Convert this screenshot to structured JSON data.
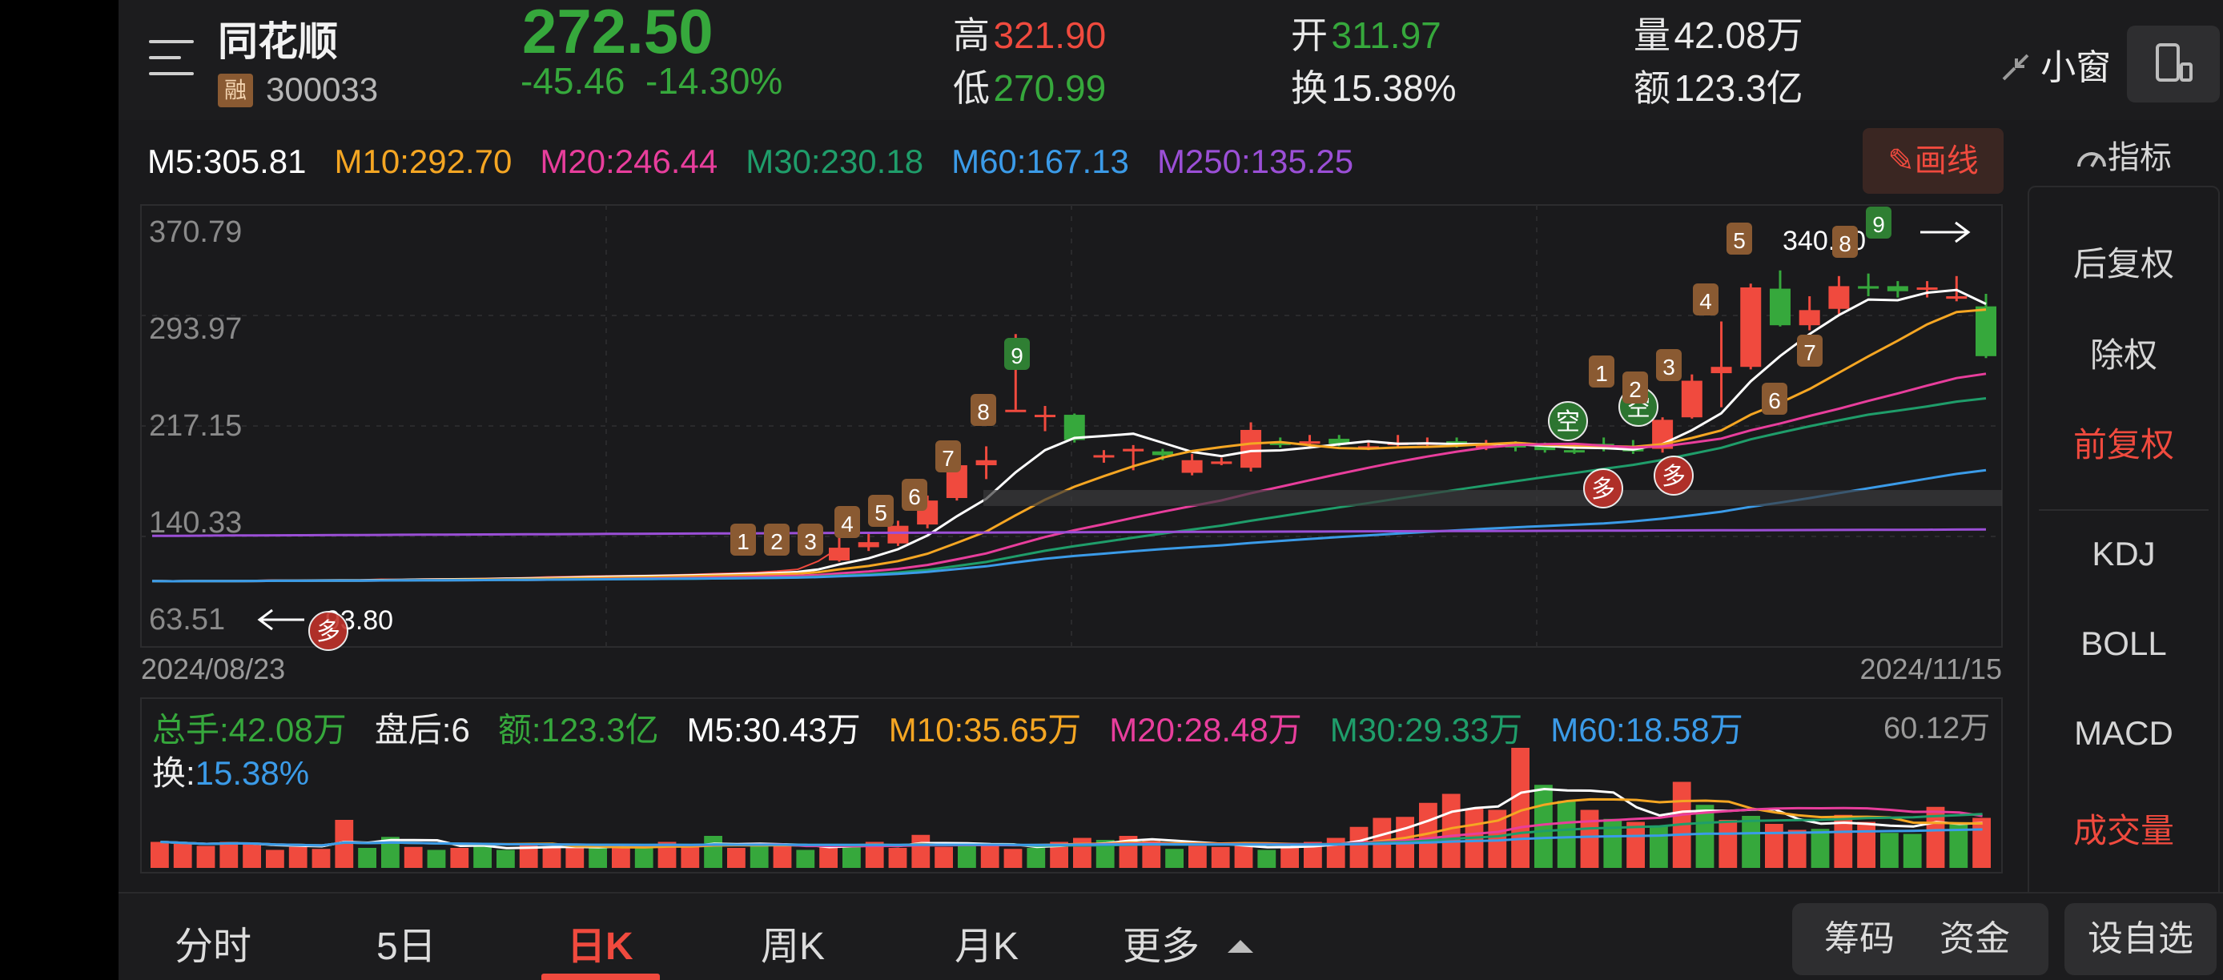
{
  "stock": {
    "name": "同花顺",
    "badge": "融",
    "code": "300033",
    "price": "272.50",
    "change": "-45.46",
    "change_pct": "-14.30%"
  },
  "quote": {
    "high_label": "高",
    "high": "321.90",
    "low_label": "低",
    "low": "270.99",
    "open_label": "开",
    "open": "311.97",
    "turnover_label": "换",
    "turnover": "15.38%",
    "volume_label": "量",
    "volume": "42.08万",
    "amount_label": "额",
    "amount": "123.3亿"
  },
  "header_actions": {
    "mini_window": "小窗"
  },
  "ma": {
    "m5": "M5:305.81",
    "m10": "M10:292.70",
    "m20": "M20:246.44",
    "m30": "M30:230.18",
    "m60": "M60:167.13",
    "m250": "M250:135.25"
  },
  "draw_button": "画线",
  "indicator_label": "指标",
  "sidebar": {
    "items": [
      "后复权",
      "除权",
      "前复权",
      "KDJ",
      "BOLL",
      "MACD",
      "成交量"
    ],
    "active": [
      "前复权",
      "成交量"
    ]
  },
  "colors": {
    "up": "#f04a3e",
    "down": "#36a83c",
    "m5": "#ffffff",
    "m10": "#f5a623",
    "m20": "#e83e9c",
    "m30": "#1f9d6a",
    "m60": "#3b9be8",
    "m250": "#9b4fd6"
  },
  "chart_data": {
    "type": "candlestick",
    "y_ticks": [
      "370.79",
      "293.97",
      "217.15",
      "140.33",
      "63.51"
    ],
    "ylim": [
      63.51,
      370.79
    ],
    "date_start": "2024/08/23",
    "date_end": "2024/11/15",
    "annotations": {
      "high_marker": "340.50",
      "low_marker": "93.80",
      "buy_tag": "多",
      "sell_tag": "空"
    },
    "td_counts": [
      "1",
      "2",
      "3",
      "4",
      "5",
      "6",
      "7",
      "8",
      "9",
      "1",
      "2",
      "3",
      "4",
      "5",
      "6",
      "7",
      "8",
      "9"
    ],
    "candles": [
      [
        93.9,
        94.2,
        93.0,
        95.0
      ],
      [
        93.6,
        93.8,
        92.8,
        94.6
      ],
      [
        94.0,
        94.3,
        93.0,
        95.2
      ],
      [
        94.5,
        94.1,
        93.5,
        95.5
      ],
      [
        94.0,
        94.6,
        93.4,
        95.6
      ],
      [
        94.3,
        94.6,
        93.5,
        95.4
      ],
      [
        94.5,
        94.9,
        94.0,
        95.8
      ],
      [
        94.6,
        94.6,
        93.8,
        95.6
      ],
      [
        94.6,
        94.7,
        94.0,
        95.7
      ],
      [
        94.7,
        94.9,
        94.1,
        95.9
      ],
      [
        94.8,
        95.0,
        94.0,
        96.0
      ],
      [
        94.8,
        95.6,
        94.2,
        96.4
      ],
      [
        95.5,
        95.3,
        94.6,
        96.2
      ],
      [
        95.4,
        95.7,
        94.8,
        96.8
      ],
      [
        95.7,
        95.9,
        95.0,
        96.9
      ],
      [
        95.8,
        95.8,
        95.0,
        96.8
      ],
      [
        95.9,
        96.2,
        95.2,
        97.2
      ],
      [
        96.0,
        96.5,
        95.4,
        97.4
      ],
      [
        96.5,
        96.8,
        95.8,
        97.8
      ],
      [
        96.8,
        97.4,
        96.2,
        98.2
      ],
      [
        97.4,
        97.6,
        96.8,
        98.6
      ],
      [
        97.6,
        98.0,
        97.0,
        99.0
      ],
      [
        98.0,
        98.2,
        97.4,
        99.2
      ],
      [
        98.2,
        98.4,
        97.6,
        99.4
      ],
      [
        98.4,
        98.6,
        97.8,
        99.6
      ],
      [
        98.6,
        99.0,
        98.0,
        100.0
      ],
      [
        99.0,
        99.4,
        98.4,
        100.4
      ],
      [
        99.4,
        100.0,
        98.8,
        101.0
      ],
      [
        100.0,
        100.4,
        99.2,
        101.6
      ],
      [
        100.5,
        101.0,
        99.8,
        102.0
      ],
      [
        101.0,
        102.0,
        100.2,
        103.0
      ],
      [
        102.0,
        103.4,
        101.2,
        104.4
      ],
      [
        103.4,
        110.0,
        102.8,
        112.0
      ],
      [
        110.5,
        120.6,
        109.5,
        130.0
      ],
      [
        121.0,
        125.0,
        118.0,
        132.0
      ],
      [
        124.0,
        138.0,
        122.0,
        142.0
      ],
      [
        139.0,
        158.0,
        136.0,
        162.0
      ],
      [
        160.0,
        186.0,
        158.0,
        193.0
      ],
      [
        186.0,
        190.0,
        175.0,
        201.0
      ],
      [
        230.0,
        230.0,
        230.0,
        290.0
      ],
      [
        226.0,
        226.0,
        213.0,
        233.0
      ],
      [
        226.0,
        206.0,
        204.0,
        227.0
      ],
      [
        193.0,
        194.0,
        188.0,
        198.0
      ],
      [
        197.0,
        199.0,
        182.0,
        202.0
      ],
      [
        197.0,
        194.0,
        190.0,
        199.0
      ],
      [
        180.0,
        190.0,
        178.0,
        195.0
      ],
      [
        187.0,
        189.0,
        186.0,
        192.0
      ],
      [
        184.0,
        214.0,
        181.0,
        220.0
      ],
      [
        204.0,
        202.0,
        200.0,
        208.0
      ],
      [
        205.0,
        205.0,
        201.0,
        210.0
      ],
      [
        207.0,
        203.0,
        201.0,
        210.0
      ],
      [
        200.0,
        201.0,
        198.0,
        204.0
      ],
      [
        202.0,
        204.0,
        200.0,
        210.0
      ],
      [
        203.0,
        204.0,
        200.0,
        208.0
      ],
      [
        205.0,
        202.0,
        200.0,
        208.0
      ],
      [
        200.0,
        203.0,
        198.0,
        206.0
      ],
      [
        203.0,
        200.0,
        197.0,
        205.0
      ],
      [
        202.0,
        198.0,
        196.0,
        204.0
      ],
      [
        198.0,
        197.0,
        195.0,
        202.0
      ],
      [
        203.0,
        200.0,
        197.0,
        208.0
      ],
      [
        200.0,
        197.0,
        195.0,
        206.0
      ],
      [
        199.0,
        222.0,
        196.0,
        224.0
      ],
      [
        224.0,
        253.0,
        223.0,
        258.0
      ],
      [
        259.0,
        264.0,
        232.0,
        300.0
      ],
      [
        264.0,
        327.0,
        262.0,
        330.0
      ],
      [
        326.0,
        297.0,
        296.0,
        340.5
      ],
      [
        297.0,
        309.0,
        293.0,
        320.0
      ],
      [
        310.0,
        328.0,
        306.0,
        336.0
      ],
      [
        328.0,
        326.0,
        320.0,
        338.0
      ],
      [
        328.0,
        324.0,
        319.0,
        332.0
      ],
      [
        326.0,
        327.0,
        319.0,
        332.0
      ],
      [
        318.0,
        320.0,
        316.0,
        336.0
      ],
      [
        311.97,
        272.5,
        270.99,
        321.9
      ]
    ]
  },
  "volume": {
    "total": "总手:42.08万",
    "after_hours": "盘后:6",
    "amount": "额:123.3亿",
    "m5": "M5:30.43万",
    "m10": "M10:35.65万",
    "m20": "M20:28.48万",
    "m30": "M30:29.33万",
    "m60": "M60:18.58万",
    "max": "60.12万",
    "turnover_label": "换:",
    "turnover": "15.38%",
    "bars": [
      [
        2.6,
        1
      ],
      [
        2.4,
        1
      ],
      [
        2.2,
        1
      ],
      [
        2.6,
        1
      ],
      [
        2.4,
        1
      ],
      [
        1.8,
        1
      ],
      [
        2.1,
        1
      ],
      [
        1.9,
        1
      ],
      [
        4.8,
        1
      ],
      [
        2.0,
        0
      ],
      [
        3.1,
        0
      ],
      [
        2.1,
        1
      ],
      [
        1.8,
        0
      ],
      [
        2.0,
        1
      ],
      [
        2.2,
        0
      ],
      [
        1.8,
        0
      ],
      [
        2.3,
        1
      ],
      [
        2.1,
        1
      ],
      [
        2.1,
        1
      ],
      [
        2.0,
        0
      ],
      [
        2.2,
        1
      ],
      [
        2.0,
        0
      ],
      [
        2.6,
        1
      ],
      [
        2.1,
        1
      ],
      [
        3.2,
        0
      ],
      [
        2.0,
        1
      ],
      [
        2.2,
        0
      ],
      [
        2.3,
        1
      ],
      [
        1.8,
        0
      ],
      [
        2.1,
        1
      ],
      [
        2.4,
        0
      ],
      [
        2.6,
        1
      ],
      [
        2.0,
        1
      ],
      [
        3.3,
        1
      ],
      [
        2.1,
        1
      ],
      [
        2.3,
        0
      ],
      [
        2.2,
        1
      ],
      [
        1.9,
        1
      ],
      [
        2.0,
        0
      ],
      [
        2.6,
        1
      ],
      [
        3.0,
        1
      ],
      [
        2.8,
        0
      ],
      [
        3.2,
        1
      ],
      [
        2.7,
        1
      ],
      [
        1.9,
        0
      ],
      [
        2.2,
        1
      ],
      [
        2.1,
        1
      ],
      [
        2.3,
        1
      ],
      [
        1.8,
        0
      ],
      [
        2.0,
        1
      ],
      [
        2.6,
        1
      ],
      [
        3.0,
        1
      ],
      [
        4.1,
        1
      ],
      [
        5.0,
        1
      ],
      [
        5.1,
        1
      ],
      [
        6.5,
        1
      ],
      [
        7.4,
        1
      ],
      [
        5.9,
        1
      ],
      [
        5.8,
        1
      ],
      [
        12.0,
        1
      ],
      [
        8.3,
        0
      ],
      [
        6.7,
        0
      ],
      [
        5.8,
        1
      ],
      [
        4.9,
        0
      ],
      [
        4.6,
        1
      ],
      [
        4.2,
        0
      ],
      [
        8.6,
        1
      ],
      [
        6.3,
        0
      ],
      [
        4.8,
        1
      ],
      [
        5.2,
        0
      ],
      [
        4.4,
        1
      ],
      [
        3.8,
        1
      ],
      [
        3.9,
        0
      ],
      [
        5.3,
        1
      ],
      [
        4.6,
        1
      ],
      [
        3.5,
        0
      ],
      [
        3.4,
        0
      ],
      [
        6.1,
        1
      ],
      [
        4.4,
        0
      ],
      [
        5.0,
        1
      ]
    ]
  },
  "tabs": [
    "分时",
    "5日",
    "日K",
    "周K",
    "月K",
    "更多"
  ],
  "active_tab": "日K",
  "footer_buttons": [
    "筹码",
    "资金",
    "设自选"
  ]
}
